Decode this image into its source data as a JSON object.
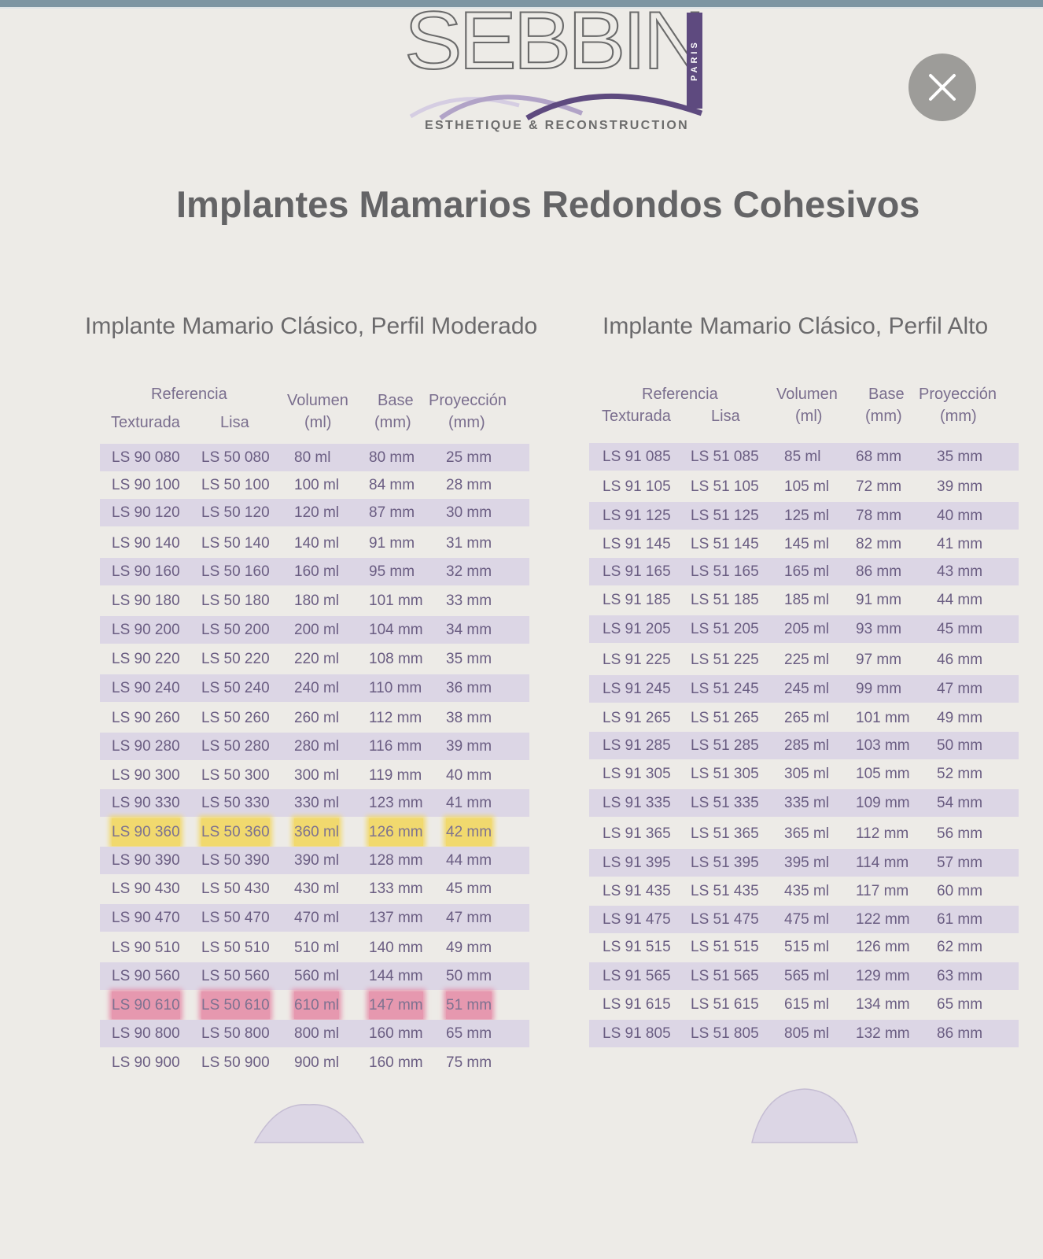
{
  "window": {
    "close_icon": "close-icon"
  },
  "brand": {
    "name": "SEBBIN",
    "city": "PARIS",
    "tagline": "ESTHETIQUE & RECONSTRUCTION",
    "accent_color": "#5e4a7f"
  },
  "page": {
    "title": "Implantes Mamarios Redondos Cohesivos"
  },
  "tables": [
    {
      "title": "Implante Mamario Clásico, Perfil Moderado",
      "headers": {
        "reference": "Referencia",
        "textured": "Texturada",
        "smooth": "Lisa",
        "volume": "Volumen",
        "volume_unit": "(ml)",
        "base": "Base",
        "base_unit": "(mm)",
        "projection": "Proyección",
        "projection_unit": "(mm)"
      },
      "rows": [
        {
          "textured": "LS 90 080",
          "smooth": "LS 50 080",
          "volume": "80 ml",
          "base": "80 mm",
          "projection": "25 mm"
        },
        {
          "textured": "LS 90 100",
          "smooth": "LS 50 100",
          "volume": "100 ml",
          "base": "84 mm",
          "projection": "28 mm"
        },
        {
          "textured": "LS 90 120",
          "smooth": "LS 50 120",
          "volume": "120 ml",
          "base": "87 mm",
          "projection": "30 mm"
        },
        {
          "textured": "LS 90 140",
          "smooth": "LS 50 140",
          "volume": "140 ml",
          "base": "91 mm",
          "projection": "31 mm"
        },
        {
          "textured": "LS 90 160",
          "smooth": "LS 50 160",
          "volume": "160 ml",
          "base": "95 mm",
          "projection": "32 mm"
        },
        {
          "textured": "LS 90 180",
          "smooth": "LS 50 180",
          "volume": "180 ml",
          "base": "101 mm",
          "projection": "33 mm"
        },
        {
          "textured": "LS 90 200",
          "smooth": "LS 50 200",
          "volume": "200 ml",
          "base": "104 mm",
          "projection": "34 mm"
        },
        {
          "textured": "LS 90 220",
          "smooth": "LS 50 220",
          "volume": "220 ml",
          "base": "108 mm",
          "projection": "35 mm"
        },
        {
          "textured": "LS 90 240",
          "smooth": "LS 50 240",
          "volume": "240 ml",
          "base": "110 mm",
          "projection": "36 mm"
        },
        {
          "textured": "LS 90 260",
          "smooth": "LS 50 260",
          "volume": "260 ml",
          "base": "112 mm",
          "projection": "38 mm"
        },
        {
          "textured": "LS 90 280",
          "smooth": "LS 50 280",
          "volume": "280 ml",
          "base": "116 mm",
          "projection": "39 mm"
        },
        {
          "textured": "LS 90 300",
          "smooth": "LS 50 300",
          "volume": "300 ml",
          "base": "119 mm",
          "projection": "40 mm"
        },
        {
          "textured": "LS 90 330",
          "smooth": "LS 50 330",
          "volume": "330 ml",
          "base": "123 mm",
          "projection": "41 mm"
        },
        {
          "textured": "LS 90 360",
          "smooth": "LS 50 360",
          "volume": "360 ml",
          "base": "126 mm",
          "projection": "42 mm",
          "highlight": "#f2d65a"
        },
        {
          "textured": "LS 90 390",
          "smooth": "LS 50 390",
          "volume": "390 ml",
          "base": "128 mm",
          "projection": "44 mm"
        },
        {
          "textured": "LS 90 430",
          "smooth": "LS 50 430",
          "volume": "430 ml",
          "base": "133 mm",
          "projection": "45 mm"
        },
        {
          "textured": "LS 90 470",
          "smooth": "LS 50 470",
          "volume": "470 ml",
          "base": "137 mm",
          "projection": "47 mm"
        },
        {
          "textured": "LS 90 510",
          "smooth": "LS 50 510",
          "volume": "510 ml",
          "base": "140 mm",
          "projection": "49 mm"
        },
        {
          "textured": "LS 90 560",
          "smooth": "LS 50 560",
          "volume": "560 ml",
          "base": "144 mm",
          "projection": "50 mm"
        },
        {
          "textured": "LS 90 610",
          "smooth": "LS 50 610",
          "volume": "610 ml",
          "base": "147 mm",
          "projection": "51 mm",
          "highlight": "#e58aa6"
        },
        {
          "textured": "LS 90 800",
          "smooth": "LS 50 800",
          "volume": "800 ml",
          "base": "160 mm",
          "projection": "65 mm"
        },
        {
          "textured": "LS 90 900",
          "smooth": "LS 50 900",
          "volume": "900 ml",
          "base": "160 mm",
          "projection": "75 mm"
        }
      ],
      "profile_icon": "moderate-profile-dome-icon"
    },
    {
      "title": "Implante Mamario Clásico, Perfil Alto",
      "headers": {
        "reference": "Referencia",
        "textured": "Texturada",
        "smooth": "Lisa",
        "volume": "Volumen",
        "volume_unit": "(ml)",
        "base": "Base",
        "base_unit": "(mm)",
        "projection": "Proyección",
        "projection_unit": "(mm)"
      },
      "rows": [
        {
          "textured": "LS 91 085",
          "smooth": "LS 51 085",
          "volume": "85 ml",
          "base": "68 mm",
          "projection": "35 mm"
        },
        {
          "textured": "LS 91 105",
          "smooth": "LS 51 105",
          "volume": "105 ml",
          "base": "72 mm",
          "projection": "39 mm"
        },
        {
          "textured": "LS 91 125",
          "smooth": "LS 51 125",
          "volume": "125 ml",
          "base": "78 mm",
          "projection": "40 mm"
        },
        {
          "textured": "LS 91 145",
          "smooth": "LS 51 145",
          "volume": "145 ml",
          "base": "82 mm",
          "projection": "41 mm"
        },
        {
          "textured": "LS 91 165",
          "smooth": "LS 51 165",
          "volume": "165 ml",
          "base": "86 mm",
          "projection": "43 mm"
        },
        {
          "textured": "LS 91 185",
          "smooth": "LS 51 185",
          "volume": "185 ml",
          "base": "91 mm",
          "projection": "44 mm"
        },
        {
          "textured": "LS 91 205",
          "smooth": "LS 51 205",
          "volume": "205 ml",
          "base": "93 mm",
          "projection": "45 mm"
        },
        {
          "textured": "LS 91 225",
          "smooth": "LS 51 225",
          "volume": "225 ml",
          "base": "97 mm",
          "projection": "46 mm"
        },
        {
          "textured": "LS 91 245",
          "smooth": "LS 51 245",
          "volume": "245 ml",
          "base": "99 mm",
          "projection": "47 mm"
        },
        {
          "textured": "LS 91 265",
          "smooth": "LS 51 265",
          "volume": "265 ml",
          "base": "101 mm",
          "projection": "49 mm"
        },
        {
          "textured": "LS 91 285",
          "smooth": "LS 51 285",
          "volume": "285 ml",
          "base": "103 mm",
          "projection": "50 mm"
        },
        {
          "textured": "LS 91 305",
          "smooth": "LS 51 305",
          "volume": "305 ml",
          "base": "105 mm",
          "projection": "52 mm"
        },
        {
          "textured": "LS 91 335",
          "smooth": "LS 51 335",
          "volume": "335 ml",
          "base": "109 mm",
          "projection": "54 mm"
        },
        {
          "textured": "LS 91 365",
          "smooth": "LS 51 365",
          "volume": "365 ml",
          "base": "112 mm",
          "projection": "56 mm"
        },
        {
          "textured": "LS 91 395",
          "smooth": "LS 51 395",
          "volume": "395 ml",
          "base": "114 mm",
          "projection": "57 mm"
        },
        {
          "textured": "LS 91 435",
          "smooth": "LS 51 435",
          "volume": "435 ml",
          "base": "117 mm",
          "projection": "60 mm"
        },
        {
          "textured": "LS 91 475",
          "smooth": "LS 51 475",
          "volume": "475 ml",
          "base": "122 mm",
          "projection": "61 mm"
        },
        {
          "textured": "LS 91 515",
          "smooth": "LS 51 515",
          "volume": "515 ml",
          "base": "126 mm",
          "projection": "62 mm"
        },
        {
          "textured": "LS 91 565",
          "smooth": "LS 51 565",
          "volume": "565 ml",
          "base": "129 mm",
          "projection": "63 mm"
        },
        {
          "textured": "LS 91 615",
          "smooth": "LS 51 615",
          "volume": "615 ml",
          "base": "134 mm",
          "projection": "65 mm"
        },
        {
          "textured": "LS 91 805",
          "smooth": "LS 51 805",
          "volume": "805 ml",
          "base": "132 mm",
          "projection": "86 mm"
        }
      ],
      "profile_icon": "high-profile-dome-icon"
    }
  ]
}
